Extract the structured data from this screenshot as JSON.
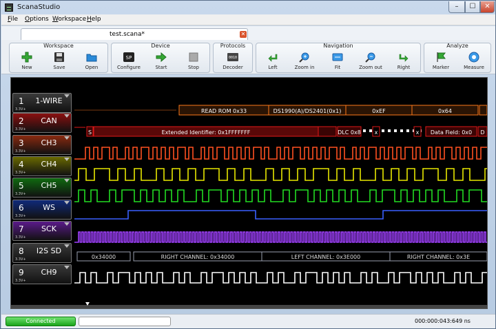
{
  "window": {
    "title": "ScanaStudio",
    "buttons": {
      "min": "–",
      "max": "☐",
      "close": "✕"
    }
  },
  "menu": [
    {
      "label": "File",
      "key": "F",
      "rest": "ile"
    },
    {
      "label": "Options",
      "key": "O",
      "rest": "ptions"
    },
    {
      "label": "Workspace",
      "key": "W",
      "rest": "orkspace"
    },
    {
      "label": "Help",
      "key": "H",
      "rest": "elp"
    }
  ],
  "tab": {
    "label": "test.scana*",
    "close": "✕"
  },
  "toolbar": {
    "workspace": {
      "title": "Workspace",
      "buttons": [
        {
          "label": "New",
          "icon": "plus-icon"
        },
        {
          "label": "Save",
          "icon": "floppy-icon"
        },
        {
          "label": "Open",
          "icon": "folder-icon"
        }
      ]
    },
    "device": {
      "title": "Device",
      "buttons": [
        {
          "label": "Configure",
          "icon": "sp-icon",
          "badge": "SP"
        },
        {
          "label": "Start",
          "icon": "play-arrow-icon"
        },
        {
          "label": "Stop",
          "icon": "stop-icon"
        }
      ]
    },
    "protocols": {
      "title": "Protocols",
      "buttons": [
        {
          "label": "Decoder",
          "icon": "decoder-icon",
          "badge": "0010"
        }
      ]
    },
    "navigation": {
      "title": "Navigation",
      "buttons": [
        {
          "label": "Left",
          "icon": "nav-left-icon"
        },
        {
          "label": "Zoom in",
          "icon": "zoom-in-icon"
        },
        {
          "label": "Fit",
          "icon": "fit-icon"
        },
        {
          "label": "Zoom out",
          "icon": "zoom-out-icon"
        },
        {
          "label": "Right",
          "icon": "nav-right-icon"
        }
      ]
    },
    "analyze": {
      "title": "Analyze",
      "buttons": [
        {
          "label": "Marker",
          "icon": "flag-icon"
        },
        {
          "label": "Measure",
          "icon": "measure-icon"
        }
      ]
    }
  },
  "channels": [
    {
      "num": "1",
      "name": "1-WIRE",
      "volt": "3.3V+",
      "color": "#ff7a1a",
      "bg": "#3a3a3a"
    },
    {
      "num": "2",
      "name": "CAN",
      "volt": "3.3V+",
      "color": "#e01818",
      "bg": "#8a1010"
    },
    {
      "num": "3",
      "name": "CH3",
      "volt": "3.3V+",
      "color": "#ff5020",
      "bg": "#8a2a10"
    },
    {
      "num": "4",
      "name": "CH4",
      "volt": "3.3V+",
      "color": "#e8e800",
      "bg": "#6a6a00"
    },
    {
      "num": "5",
      "name": "CH5",
      "volt": "3.3V+",
      "color": "#22dd22",
      "bg": "#106a10"
    },
    {
      "num": "6",
      "name": "WS",
      "volt": "3.3V+",
      "color": "#3a60ff",
      "bg": "#102a7a"
    },
    {
      "num": "7",
      "name": "SCK",
      "volt": "3.3V+",
      "color": "#a040ff",
      "bg": "#5a1a8a"
    },
    {
      "num": "8",
      "name": "I2S SD",
      "volt": "3.3V+",
      "color": "#9aa0b0",
      "bg": "#3a3a3a"
    },
    {
      "num": "9",
      "name": "CH9",
      "volt": "3.3V+",
      "color": "#ffffff",
      "bg": "#3a3a3a"
    }
  ],
  "decodes": {
    "onewire": [
      "READ ROM 0x33",
      "DS1990(A)/DS2401(0x1)",
      "0xEF",
      "0x64"
    ],
    "can": {
      "sof": "S",
      "id": "Extended Identifier: 0x1FFFFFFF",
      "dlc": "DLC 0x8",
      "x1": "x",
      "x2": "x",
      "data": "Data Field: 0x0",
      "tail": "D"
    },
    "i2s": [
      "0x34000",
      "RIGHT CHANNEL: 0x34000",
      "LEFT CHANNEL: 0x3E000",
      "RIGHT CHANNEL: 0x3E"
    ]
  },
  "status": {
    "connected": "Connected",
    "time": "000:000:043:649 ns"
  }
}
